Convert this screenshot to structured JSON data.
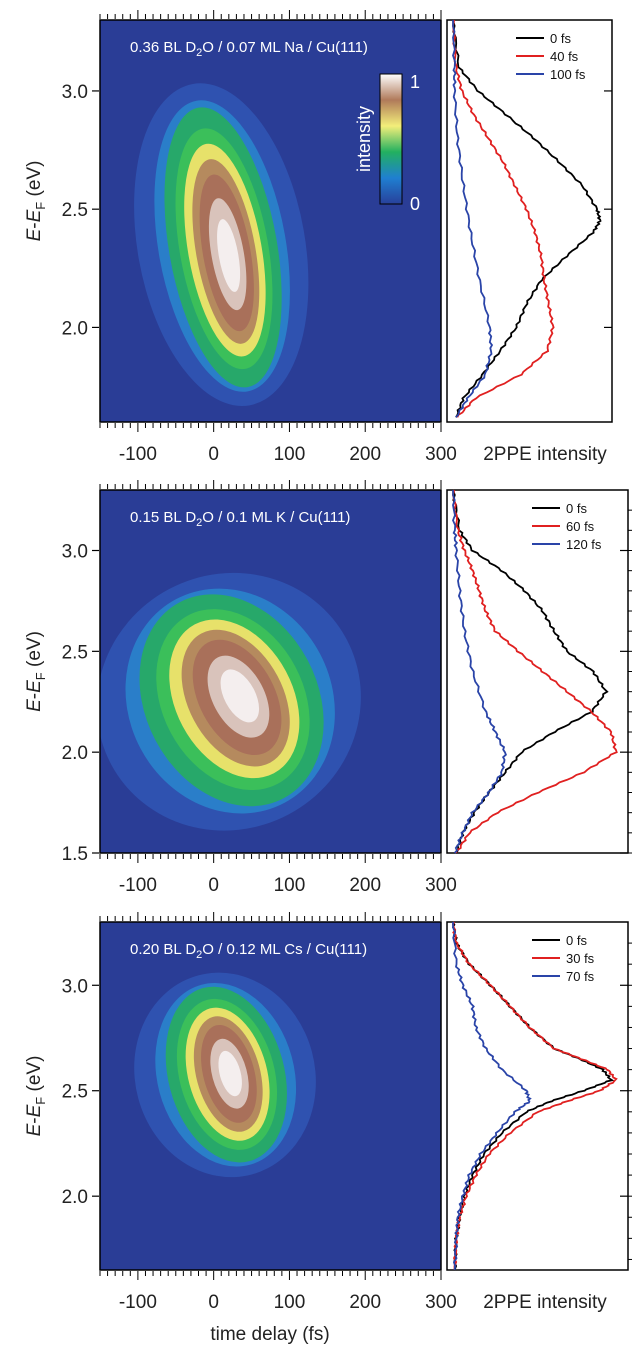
{
  "colors": {
    "map_background": "#2a3d96",
    "trace_black": "#000000",
    "trace_red": "#e02020",
    "trace_blue": "#2a44a8",
    "colormap": [
      "#28409a",
      "#1f7fd1",
      "#22b060",
      "#f3ee7a",
      "#b07a5a",
      "#ffffff"
    ]
  },
  "colorbar": {
    "label": "intensity",
    "min_label": "0",
    "max_label": "1"
  },
  "xlabel": "time delay (fs)",
  "side_xlabel": "2PPE intensity",
  "chart_data": [
    {
      "type": "heatmap",
      "title": "0.36 BL D2O / 0.07 ML Na / Cu(111)",
      "xlim": [
        -150,
        300
      ],
      "ylim": [
        1.6,
        3.3
      ],
      "xticks": [
        -100,
        0,
        100,
        200,
        300
      ],
      "yticks": [
        2.0,
        2.5,
        3.0
      ],
      "ylabel": "E-EF (eV)",
      "peak": {
        "t": 10,
        "e_start": 2.5,
        "e_end": 2.05,
        "e_top": 2.95,
        "e_bottom": 1.75
      },
      "traces": {
        "type": "line",
        "legend": [
          {
            "name": "0 fs",
            "color": "#000000"
          },
          {
            "name": "40 fs",
            "color": "#e02020"
          },
          {
            "name": "100 fs",
            "color": "#2a44a8"
          }
        ],
        "series": [
          {
            "name": "0 fs",
            "energy": [
              3.3,
              3.1,
              3.0,
              2.9,
              2.8,
              2.7,
              2.6,
              2.5,
              2.45,
              2.4,
              2.3,
              2.2,
              2.1,
              2.0,
              1.9,
              1.8,
              1.7,
              1.62
            ],
            "intensity": [
              0.0,
              0.04,
              0.17,
              0.36,
              0.55,
              0.72,
              0.88,
              0.98,
              1.0,
              0.95,
              0.77,
              0.6,
              0.5,
              0.43,
              0.32,
              0.2,
              0.07,
              0.02
            ]
          },
          {
            "name": "40 fs",
            "energy": [
              3.3,
              3.1,
              3.0,
              2.9,
              2.8,
              2.7,
              2.6,
              2.5,
              2.4,
              2.3,
              2.2,
              2.1,
              2.0,
              1.9,
              1.8,
              1.7,
              1.62
            ],
            "intensity": [
              0.0,
              0.02,
              0.06,
              0.14,
              0.24,
              0.34,
              0.42,
              0.5,
              0.56,
              0.6,
              0.62,
              0.65,
              0.68,
              0.64,
              0.46,
              0.15,
              0.03
            ]
          },
          {
            "name": "100 fs",
            "energy": [
              3.3,
              3.1,
              3.0,
              2.8,
              2.6,
              2.4,
              2.2,
              2.0,
              1.9,
              1.8,
              1.7,
              1.62
            ],
            "intensity": [
              0.0,
              0.01,
              0.01,
              0.03,
              0.07,
              0.12,
              0.18,
              0.25,
              0.26,
              0.22,
              0.1,
              0.02
            ]
          }
        ]
      }
    },
    {
      "type": "heatmap",
      "title": "0.15 BL D2O / 0.1 ML K / Cu(111)",
      "xlim": [
        -150,
        300
      ],
      "ylim": [
        1.5,
        3.3
      ],
      "xticks": [
        -100,
        0,
        100,
        200,
        300
      ],
      "yticks": [
        1.5,
        2.0,
        2.5,
        3.0
      ],
      "ylabel": "E-EF (eV)",
      "peak": {
        "t": 20,
        "e_start": 2.3,
        "e_end": 1.95,
        "e_top": 2.8,
        "e_bottom": 1.7
      },
      "traces": {
        "type": "line",
        "legend": [
          {
            "name": "0 fs",
            "color": "#000000"
          },
          {
            "name": "60 fs",
            "color": "#e02020"
          },
          {
            "name": "120 fs",
            "color": "#2a44a8"
          }
        ],
        "series": [
          {
            "name": "0 fs",
            "energy": [
              3.3,
              3.1,
              3.0,
              2.9,
              2.8,
              2.7,
              2.6,
              2.5,
              2.4,
              2.3,
              2.2,
              2.1,
              2.0,
              1.9,
              1.8,
              1.7,
              1.6,
              1.5
            ],
            "intensity": [
              0.0,
              0.04,
              0.12,
              0.3,
              0.44,
              0.55,
              0.62,
              0.7,
              0.86,
              0.94,
              0.85,
              0.62,
              0.42,
              0.32,
              0.22,
              0.13,
              0.06,
              0.02
            ]
          },
          {
            "name": "60 fs",
            "energy": [
              3.3,
              3.1,
              3.0,
              2.9,
              2.8,
              2.7,
              2.6,
              2.5,
              2.4,
              2.3,
              2.2,
              2.1,
              2.0,
              1.9,
              1.8,
              1.7,
              1.6,
              1.5
            ],
            "intensity": [
              0.0,
              0.03,
              0.07,
              0.12,
              0.16,
              0.2,
              0.26,
              0.4,
              0.55,
              0.7,
              0.85,
              0.97,
              1.0,
              0.8,
              0.52,
              0.27,
              0.1,
              0.02
            ]
          },
          {
            "name": "120 fs",
            "energy": [
              3.3,
              3.1,
              3.0,
              2.8,
              2.6,
              2.4,
              2.2,
              2.1,
              2.0,
              1.9,
              1.8,
              1.7,
              1.6,
              1.5
            ],
            "intensity": [
              0.0,
              0.01,
              0.02,
              0.04,
              0.07,
              0.12,
              0.2,
              0.26,
              0.32,
              0.3,
              0.22,
              0.12,
              0.06,
              0.01
            ]
          }
        ]
      }
    },
    {
      "type": "heatmap",
      "title": "0.20 BL D2O / 0.12 ML Cs / Cu(111)",
      "xlim": [
        -150,
        300
      ],
      "ylim": [
        1.65,
        3.3
      ],
      "xticks": [
        -100,
        0,
        100,
        200,
        300
      ],
      "yticks": [
        2.0,
        2.5,
        3.0
      ],
      "ylabel": "E-EF (eV)",
      "peak": {
        "t": 15,
        "e_start": 2.6,
        "e_end": 2.5,
        "e_top": 3.0,
        "e_bottom": 2.15
      },
      "traces": {
        "type": "line",
        "legend": [
          {
            "name": "0 fs",
            "color": "#000000"
          },
          {
            "name": "30 fs",
            "color": "#e02020"
          },
          {
            "name": "70 fs",
            "color": "#2a44a8"
          }
        ],
        "series": [
          {
            "name": "0 fs",
            "energy": [
              3.3,
              3.2,
              3.1,
              3.0,
              2.9,
              2.8,
              2.7,
              2.65,
              2.6,
              2.55,
              2.5,
              2.45,
              2.4,
              2.3,
              2.2,
              2.1,
              2.0,
              1.9,
              1.8,
              1.65
            ],
            "intensity": [
              0.0,
              0.02,
              0.1,
              0.23,
              0.35,
              0.47,
              0.62,
              0.78,
              0.92,
              0.97,
              0.8,
              0.6,
              0.45,
              0.3,
              0.19,
              0.12,
              0.07,
              0.04,
              0.02,
              0.01
            ]
          },
          {
            "name": "30 fs",
            "energy": [
              3.3,
              3.2,
              3.1,
              3.0,
              2.9,
              2.8,
              2.7,
              2.65,
              2.6,
              2.55,
              2.5,
              2.45,
              2.4,
              2.3,
              2.2,
              2.1,
              2.0,
              1.9,
              1.8,
              1.65
            ],
            "intensity": [
              0.0,
              0.02,
              0.1,
              0.23,
              0.35,
              0.47,
              0.62,
              0.79,
              0.95,
              1.0,
              0.9,
              0.7,
              0.52,
              0.35,
              0.22,
              0.14,
              0.08,
              0.04,
              0.02,
              0.01
            ]
          },
          {
            "name": "70 fs",
            "energy": [
              3.3,
              3.1,
              3.0,
              2.9,
              2.8,
              2.7,
              2.6,
              2.5,
              2.45,
              2.4,
              2.3,
              2.2,
              2.1,
              2.0,
              1.9,
              1.8,
              1.65
            ],
            "intensity": [
              0.0,
              0.02,
              0.06,
              0.12,
              0.14,
              0.2,
              0.3,
              0.45,
              0.47,
              0.38,
              0.27,
              0.17,
              0.1,
              0.06,
              0.03,
              0.02,
              0.01
            ]
          }
        ]
      }
    }
  ]
}
